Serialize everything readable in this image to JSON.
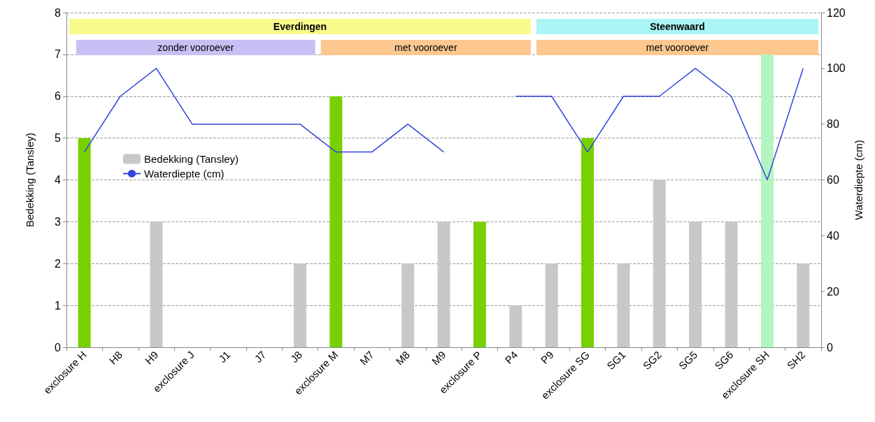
{
  "chart_data": {
    "type": "bar",
    "ylabel": "Bedekking (Tansley)",
    "y2label": "Waterdiepte (cm)",
    "categories": [
      "exclosure H",
      "H8",
      "H9",
      "exclosure J",
      "J1",
      "J7",
      "J8",
      "exclosure M",
      "M7",
      "M8",
      "M9",
      "exclosure P",
      "P4",
      "P9",
      "exclosure SG",
      "SG1",
      "SG2",
      "SG5",
      "SG6",
      "exclosure SH",
      "SH2"
    ],
    "series": [
      {
        "name": "Bedekking (Tansley)",
        "color": "#c8c8c8",
        "colors": [
          "#77d100",
          "#c8c8c8",
          "#c8c8c8",
          "#c8c8c8",
          "#c8c8c8",
          "#c8c8c8",
          "#c8c8c8",
          "#77d100",
          "#c8c8c8",
          "#c8c8c8",
          "#c8c8c8",
          "#77d100",
          "#c8c8c8",
          "#c8c8c8",
          "#77d100",
          "#c8c8c8",
          "#c8c8c8",
          "#c8c8c8",
          "#c8c8c8",
          "#b3f5c0",
          "#c8c8c8"
        ],
        "values": [
          5,
          0,
          3,
          0,
          0,
          0,
          2,
          6,
          0,
          2,
          3,
          3,
          1,
          2,
          5,
          2,
          4,
          3,
          3,
          7,
          2
        ]
      },
      {
        "name": "Waterdiepte (cm)",
        "type": "line",
        "axis": "y2",
        "color": "#3344dd",
        "values": [
          70,
          90,
          100,
          80,
          80,
          80,
          80,
          70,
          70,
          80,
          70,
          null,
          90,
          90,
          70,
          90,
          90,
          100,
          90,
          60,
          100
        ]
      }
    ],
    "ylim": [
      0,
      8
    ],
    "yticks": [
      0,
      1,
      2,
      3,
      4,
      5,
      6,
      7,
      8
    ],
    "y2lim": [
      0,
      120
    ],
    "y2ticks": [
      0,
      20,
      40,
      60,
      80,
      100,
      120
    ],
    "bands": [
      {
        "axis": "x",
        "from": "exclosure H",
        "to": "P4",
        "label": "Everdingen",
        "color": "#fafa8c"
      },
      {
        "axis": "x",
        "from": "P9",
        "to": "SH2",
        "label": "Steenwaard",
        "color": "#aaf5f5"
      },
      {
        "axis": "x",
        "from": "exclosure H",
        "to": "J8",
        "label": "zonder vooroever",
        "color": "#c8c0f5"
      },
      {
        "axis": "x",
        "from": "exclosure M",
        "to": "P4",
        "label": "met vooroever",
        "color": "#fcc890"
      },
      {
        "axis": "x",
        "from": "P9",
        "to": "SH2",
        "label": "met vooroever",
        "color": "#fcc890"
      }
    ],
    "grid": "y",
    "legend": "left",
    "marker": "none",
    "line_style": "solid"
  }
}
